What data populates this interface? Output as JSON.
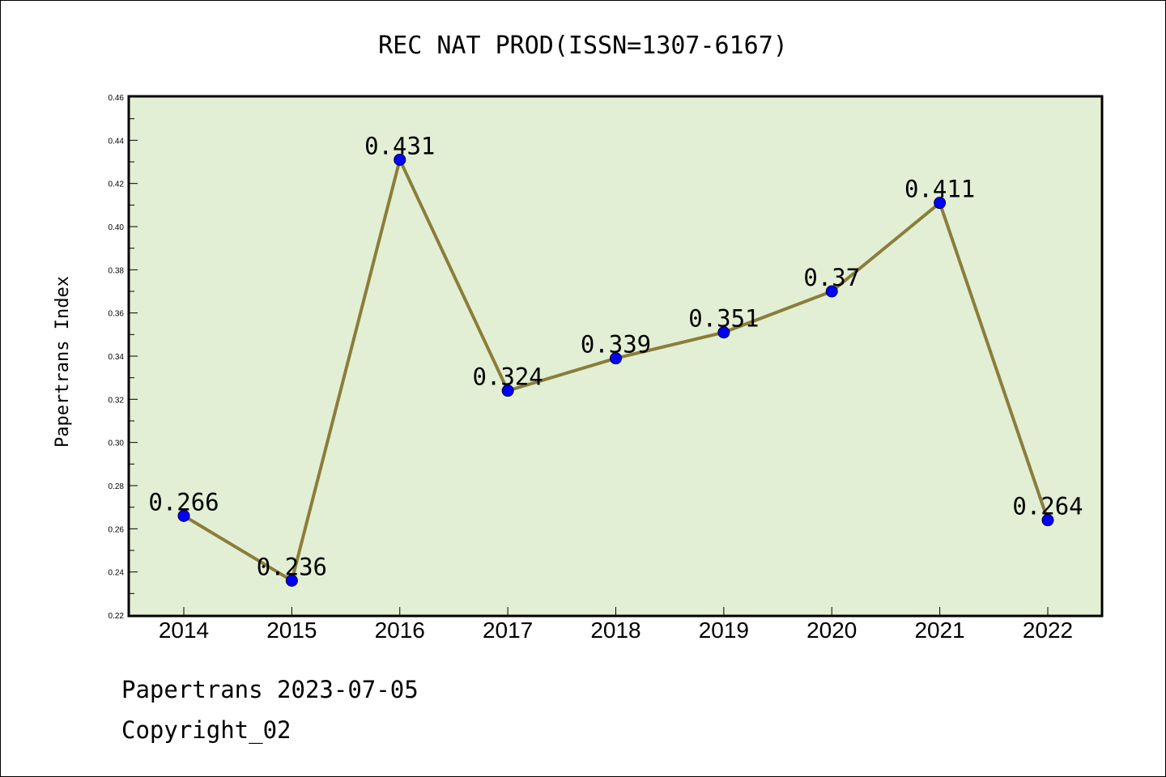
{
  "chart_data": {
    "type": "line",
    "title": "REC NAT PROD(ISSN=1307-6167)",
    "ylabel": "Papertrans Index",
    "xlabel": "",
    "categories": [
      "2014",
      "2015",
      "2016",
      "2017",
      "2018",
      "2019",
      "2020",
      "2021",
      "2022"
    ],
    "series": [
      {
        "values": [
          0.266,
          0.236,
          0.431,
          0.324,
          0.339,
          0.351,
          0.37,
          0.411,
          0.264
        ],
        "data_labels": [
          "0.266",
          "0.236",
          "0.431",
          "0.324",
          "0.339",
          "0.351",
          "0.37",
          "0.411",
          "0.264"
        ]
      }
    ],
    "ylim": [
      0.22,
      0.46
    ],
    "yticks": [
      "0.22",
      "0.24",
      "0.26",
      "0.28",
      "0.30",
      "0.32",
      "0.34",
      "0.36",
      "0.38",
      "0.40",
      "0.42",
      "0.44",
      "0.46"
    ],
    "grid": false,
    "legend": "none",
    "colors": {
      "plot_background": "#e2efd4",
      "line": "#8b7d3a",
      "marker": "#0000ff"
    }
  },
  "footer": {
    "line1": "Papertrans 2023-07-05",
    "line2": "Copyright_02"
  }
}
